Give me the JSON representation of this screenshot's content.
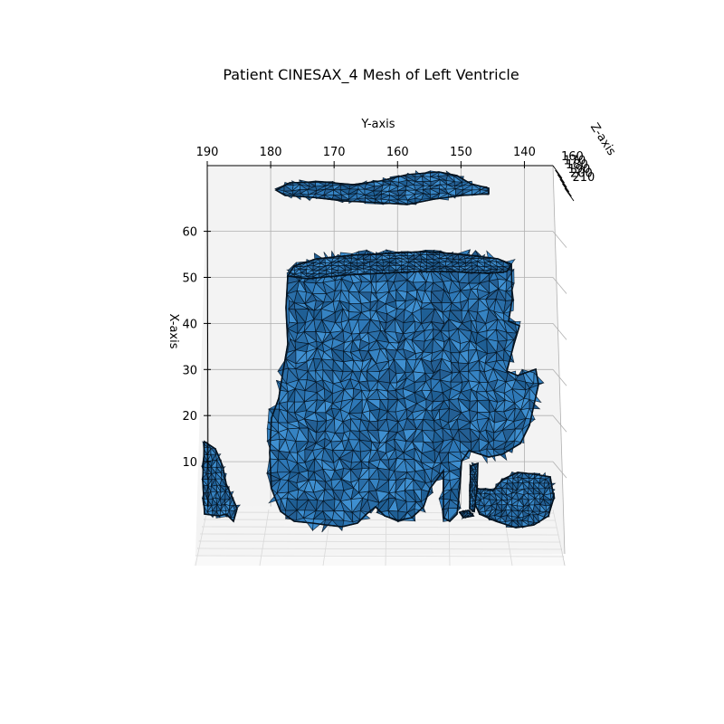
{
  "chart_data": {
    "type": "3d-mesh",
    "title": "Patient CINESAX_4 Mesh of Left Ventricle",
    "xlabel": "X-axis",
    "ylabel": "Y-axis",
    "zlabel": "Z-axis",
    "x_ticks": [
      10,
      20,
      30,
      40,
      50,
      60
    ],
    "y_ticks": [
      190,
      180,
      170,
      160,
      150,
      140
    ],
    "z_ticks": [
      "160",
      "170",
      "180",
      "190",
      "200",
      "210"
    ],
    "x_range": [
      0,
      66
    ],
    "y_range": [
      133,
      191
    ],
    "z_range": [
      160,
      212
    ],
    "grid": true,
    "colors": {
      "face": "#2e78b7",
      "face_light": "#3f8fd0",
      "face_dark": "#1f5f95",
      "edge": "#05121e",
      "pane": "#f2f2f2",
      "grid": "#b0b0b0"
    },
    "regions": [
      {
        "name": "top-slice",
        "y": [
          188,
          138
        ],
        "x": [
          59.5,
          63
        ]
      },
      {
        "name": "main-ventricle",
        "y": [
          181,
          145
        ],
        "x": [
          0,
          51
        ]
      },
      {
        "name": "left-fragment",
        "y": [
          190,
          186
        ],
        "x": [
          0,
          13
        ]
      },
      {
        "name": "right-fragment",
        "y": [
          147,
          137
        ],
        "x": [
          0,
          18
        ]
      }
    ]
  }
}
